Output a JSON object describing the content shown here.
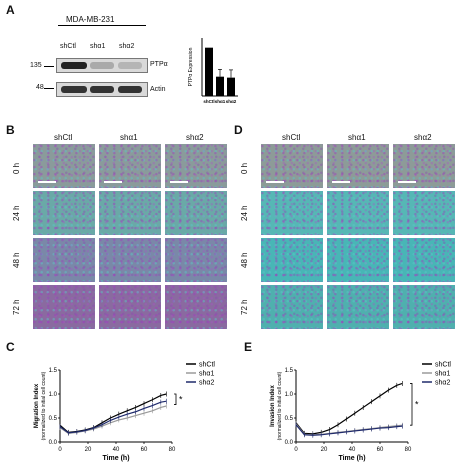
{
  "panels": {
    "A": {
      "letter": "A",
      "cell_line": "MDA-MB-231",
      "lanes": [
        "shCtl",
        "shα1",
        "shα2"
      ],
      "marker_135": "135",
      "marker_48": "48",
      "label_ptp": "PTPα",
      "label_actin": "Actin"
    },
    "B": {
      "letter": "B",
      "cols": [
        "shCtl",
        "shα1",
        "shα2"
      ],
      "rows": [
        "0 h",
        "24 h",
        "48 h",
        "72 h"
      ]
    },
    "D": {
      "letter": "D",
      "cols": [
        "shCtl",
        "shα1",
        "shα2"
      ],
      "rows": [
        "0 h",
        "24 h",
        "48 h",
        "72 h"
      ]
    },
    "C": {
      "letter": "C"
    },
    "E": {
      "letter": "E"
    }
  },
  "colors": {
    "series_black": "#000000",
    "series_gray": "#9a9a9a",
    "series_navy": "#1f2a6b",
    "micro_B": [
      "#8a9b9b",
      "#6aa9a7",
      "#7a88a8",
      "#8a6aa0"
    ],
    "micro_D": [
      "#8d9b98",
      "#56b7b5",
      "#48b6b6",
      "#4fb0ae"
    ]
  },
  "chart_data": [
    {
      "type": "bar",
      "ylabel": "PTPα Expression",
      "categories": [
        "shCtl",
        "shα1",
        "shα2"
      ],
      "values": [
        1.0,
        0.4,
        0.38
      ],
      "errors": [
        0,
        0.15,
        0.16
      ],
      "ylim": [
        0,
        1.2
      ]
    },
    {
      "type": "line",
      "ylabel": "Migration Index",
      "ylabel2": "(normalized to initial cell count)",
      "xlabel": "Time (h)",
      "xlim": [
        0,
        80
      ],
      "ylim": [
        0,
        1.5
      ],
      "xticks": [
        "0",
        "20",
        "40",
        "60",
        "80"
      ],
      "yticks": [
        "0.0",
        "0.5",
        "1.0",
        "1.5"
      ],
      "legend": [
        "shCtl",
        "shα1",
        "shα2"
      ],
      "annotation": "*",
      "x": [
        0,
        6,
        12,
        18,
        24,
        30,
        36,
        42,
        48,
        54,
        60,
        66,
        72,
        76
      ],
      "series": [
        {
          "name": "shCtl",
          "values": [
            0.35,
            0.2,
            0.22,
            0.25,
            0.3,
            0.4,
            0.5,
            0.58,
            0.65,
            0.72,
            0.8,
            0.88,
            0.97,
            1.0
          ]
        },
        {
          "name": "shα1",
          "values": [
            0.3,
            0.18,
            0.2,
            0.23,
            0.27,
            0.33,
            0.4,
            0.46,
            0.5,
            0.55,
            0.6,
            0.65,
            0.72,
            0.75
          ]
        },
        {
          "name": "shα2",
          "values": [
            0.32,
            0.19,
            0.21,
            0.24,
            0.29,
            0.36,
            0.45,
            0.52,
            0.58,
            0.63,
            0.7,
            0.76,
            0.83,
            0.85
          ]
        }
      ]
    },
    {
      "type": "line",
      "ylabel": "Invasion Index",
      "ylabel2": "(normalized to initial cell count)",
      "xlabel": "Time (h)",
      "xlim": [
        0,
        80
      ],
      "ylim": [
        0,
        1.5
      ],
      "xticks": [
        "0",
        "20",
        "40",
        "60",
        "80"
      ],
      "yticks": [
        "0.0",
        "0.5",
        "1.0",
        "1.5"
      ],
      "legend": [
        "shCtl",
        "shα1",
        "shα2"
      ],
      "annotation": "*",
      "x": [
        0,
        6,
        12,
        18,
        24,
        30,
        36,
        42,
        48,
        54,
        60,
        66,
        72,
        76
      ],
      "series": [
        {
          "name": "shCtl",
          "values": [
            0.4,
            0.18,
            0.17,
            0.2,
            0.26,
            0.36,
            0.48,
            0.6,
            0.72,
            0.84,
            0.96,
            1.08,
            1.18,
            1.22
          ]
        },
        {
          "name": "shα1",
          "values": [
            0.38,
            0.16,
            0.15,
            0.16,
            0.18,
            0.2,
            0.22,
            0.24,
            0.26,
            0.28,
            0.3,
            0.32,
            0.34,
            0.35
          ]
        },
        {
          "name": "shα2",
          "values": [
            0.36,
            0.15,
            0.14,
            0.15,
            0.17,
            0.19,
            0.21,
            0.23,
            0.25,
            0.27,
            0.29,
            0.3,
            0.32,
            0.33
          ]
        }
      ]
    }
  ]
}
